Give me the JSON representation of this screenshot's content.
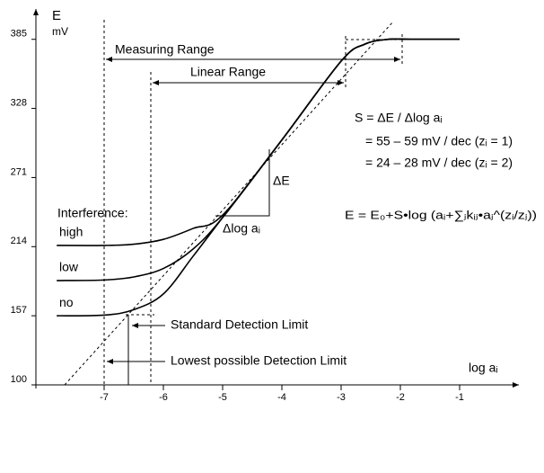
{
  "chart_data": {
    "type": "line",
    "ylabel": "E",
    "yunit": "mV",
    "xlabel": "log aᵢ",
    "legend_title": "Interference:",
    "x": [
      -7.8,
      -7,
      -6.5,
      -6,
      -5.5,
      -5,
      -4,
      -3,
      -2.6,
      -2.2,
      -1.8,
      -1
    ],
    "series": [
      {
        "name": "high",
        "color": "#000000",
        "values": [
          215,
          215,
          216,
          220,
          229,
          240,
          302,
          367,
          381,
          385,
          385,
          385
        ]
      },
      {
        "name": "low",
        "color": "#000000",
        "values": [
          186,
          186.5,
          189,
          196,
          212,
          238,
          302,
          367,
          381,
          385,
          385,
          385
        ]
      },
      {
        "name": "no",
        "color": "#000000",
        "values": [
          157,
          157.5,
          162,
          175,
          206,
          238,
          302,
          367,
          381,
          385,
          385,
          385
        ]
      }
    ],
    "xlim": [
      -8.2,
      0
    ],
    "xticks": [
      -7,
      -6,
      -5,
      -4,
      -3,
      -2,
      -1
    ],
    "ylim": [
      100,
      410
    ],
    "yticks": [
      100,
      157,
      214,
      271,
      328,
      385
    ],
    "annotations": [
      "Measuring Range",
      "Linear Range",
      "S = ΔE / Δlog aᵢ",
      "= 55 – 59 mV / dec (zᵢ = 1)",
      "= 24 – 28 mV / dec (zᵢ = 2)",
      "ΔE",
      "Δlog aᵢ",
      "E = E₀+S•log (aᵢ+∑ⱼkᵢⱼ•aⱼ^(zᵢ/zⱼ))",
      "Standard Detection Limit",
      "Lowest possible Detection Limit"
    ]
  }
}
